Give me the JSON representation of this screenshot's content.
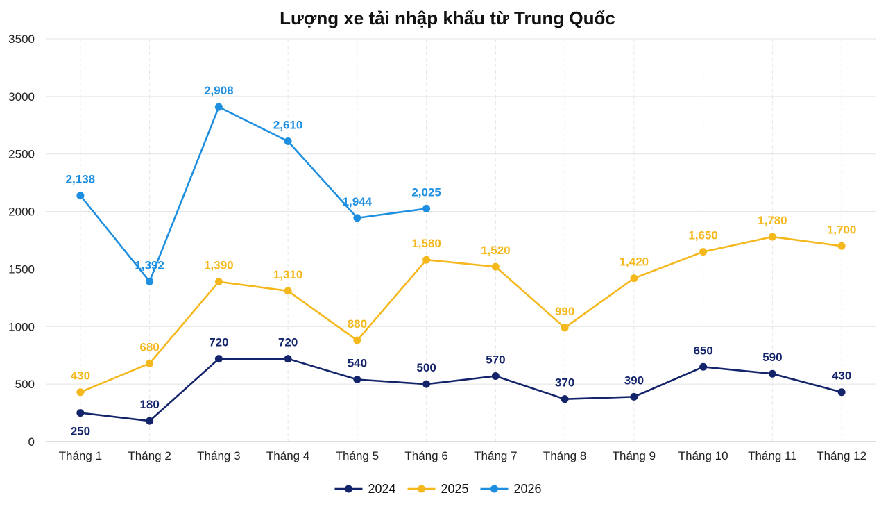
{
  "chart_data": {
    "type": "line",
    "title": "Lượng xe tải nhập khẩu từ Trung Quốc",
    "xlabel": "",
    "ylabel": "",
    "categories": [
      "Tháng 1",
      "Tháng 2",
      "Tháng 3",
      "Tháng 4",
      "Tháng 5",
      "Tháng 6",
      "Tháng 7",
      "Tháng 8",
      "Tháng 9",
      "Tháng 10",
      "Tháng 11",
      "Tháng 12"
    ],
    "ylim": [
      0,
      3500
    ],
    "yticks": [
      0,
      500,
      1000,
      1500,
      2000,
      2500,
      3000,
      3500
    ],
    "grid": true,
    "legend_position": "bottom",
    "series": [
      {
        "name": "2024",
        "color": "#13246b",
        "values": [
          250,
          180,
          720,
          720,
          540,
          500,
          570,
          370,
          390,
          650,
          590,
          430
        ],
        "labels": [
          "250",
          "180",
          "720",
          "720",
          "540",
          "500",
          "570",
          "370",
          "390",
          "650",
          "590",
          "430"
        ],
        "label_position": [
          "below",
          "above",
          "above",
          "above",
          "above",
          "above",
          "above",
          "above",
          "above",
          "above",
          "above",
          "above"
        ]
      },
      {
        "name": "2025",
        "color": "#f4b81d",
        "values": [
          430,
          680,
          1390,
          1310,
          880,
          1580,
          1520,
          990,
          1420,
          1650,
          1780,
          1700
        ],
        "labels": [
          "430",
          "680",
          "1,390",
          "1,310",
          "880",
          "1,580",
          "1,520",
          "990",
          "1,420",
          "1,650",
          "1,780",
          "1,700"
        ],
        "label_position": [
          "above",
          "above",
          "above",
          "above",
          "above",
          "above",
          "above",
          "above",
          "above",
          "above",
          "above",
          "above"
        ]
      },
      {
        "name": "2026",
        "color": "#1e8fe0",
        "values": [
          2138,
          1392,
          2908,
          2610,
          1944,
          2025,
          null,
          null,
          null,
          null,
          null,
          null
        ],
        "labels": [
          "2,138",
          "1,392",
          "2,908",
          "2,610",
          "1,944",
          "2,025",
          null,
          null,
          null,
          null,
          null,
          null
        ],
        "label_position": [
          "above",
          "above",
          "above",
          "above",
          "above",
          "above",
          null,
          null,
          null,
          null,
          null,
          null
        ]
      }
    ]
  }
}
